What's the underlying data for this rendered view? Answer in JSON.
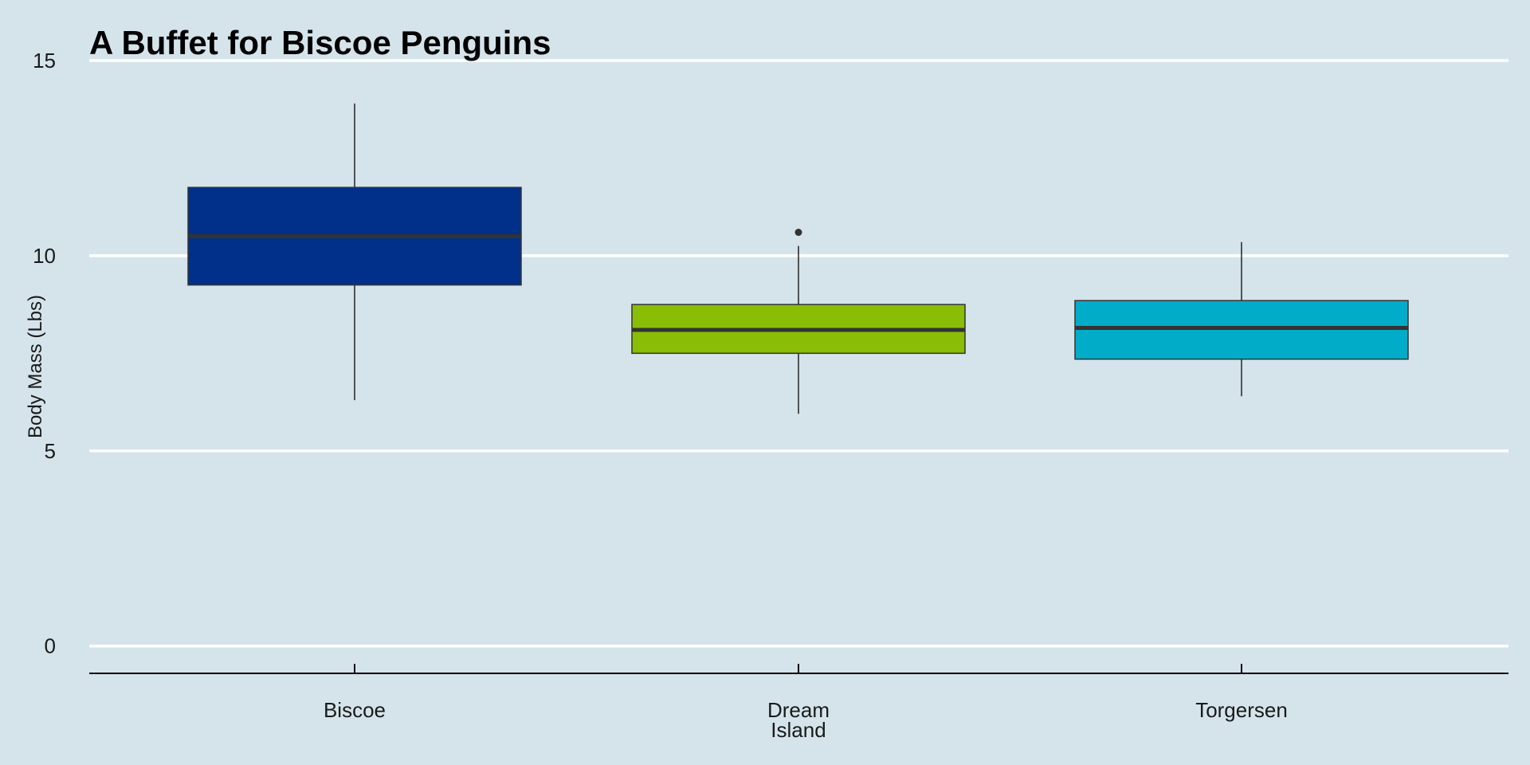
{
  "chart_data": {
    "type": "box",
    "title": "A Buffet for Biscoe Penguins",
    "xlabel": "",
    "ylabel": "Body Mass (Lbs)",
    "ylim": [
      -0.7,
      15.0
    ],
    "yticks": [
      0,
      5,
      10,
      15
    ],
    "grid": "horizontal",
    "categories": [
      {
        "label_lines": [
          "Biscoe"
        ],
        "label": "Biscoe"
      },
      {
        "label_lines": [
          "Dream",
          "Island"
        ],
        "label": "Dream Island"
      },
      {
        "label_lines": [
          "Torgersen"
        ],
        "label": "Torgersen"
      }
    ],
    "boxes": [
      {
        "category": "Biscoe",
        "min": 6.3,
        "q1": 9.25,
        "median": 10.5,
        "q3": 11.75,
        "max": 13.9,
        "outliers": [],
        "color": "#00308a"
      },
      {
        "category": "Dream Island",
        "min": 5.95,
        "q1": 7.5,
        "median": 8.1,
        "q3": 8.75,
        "max": 10.25,
        "outliers": [
          10.6
        ],
        "color": "#8abd05"
      },
      {
        "category": "Torgersen",
        "min": 6.4,
        "q1": 7.35,
        "median": 8.15,
        "q3": 8.85,
        "max": 10.35,
        "outliers": [],
        "color": "#00acc7"
      }
    ]
  },
  "colors": {
    "background": "#d5e4eb",
    "gridline": "#ffffff",
    "median": "#333333",
    "axis": "#000000"
  }
}
